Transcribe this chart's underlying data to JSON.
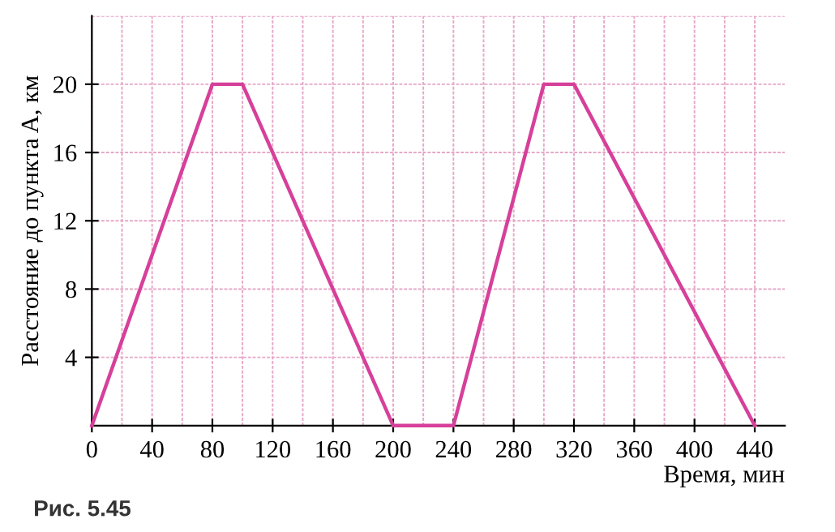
{
  "chart_data": {
    "type": "line",
    "xlabel": "Время, мин",
    "ylabel": "Расстояние до пункта A, км",
    "x": [
      0,
      80,
      100,
      200,
      240,
      300,
      320,
      440
    ],
    "series": [
      {
        "color": "#d6409a",
        "values": [
          0,
          20,
          20,
          0,
          0,
          20,
          20,
          0
        ]
      }
    ],
    "xlim": [
      0,
      460
    ],
    "ylim": [
      0,
      24
    ],
    "xticks": [
      0,
      {
        "value": 20,
        "label": null
      },
      40,
      {
        "value": 60,
        "label": null
      },
      80,
      {
        "value": 100,
        "label": null
      },
      120,
      {
        "value": 140,
        "label": null
      },
      160,
      {
        "value": 180,
        "label": null
      },
      200,
      {
        "value": 220,
        "label": null
      },
      240,
      {
        "value": 260,
        "label": null
      },
      280,
      {
        "value": 300,
        "label": null
      },
      320,
      {
        "value": 340,
        "label": null
      },
      360,
      {
        "value": 380,
        "label": null
      },
      400,
      {
        "value": 420,
        "label": null
      },
      440
    ],
    "yticks": [
      4,
      8,
      12,
      16,
      20,
      {
        "value": 24,
        "label": null
      }
    ],
    "grid": true,
    "marker": "none",
    "line_style": "solid",
    "annotations": [
      "Рис. 5.45"
    ]
  }
}
